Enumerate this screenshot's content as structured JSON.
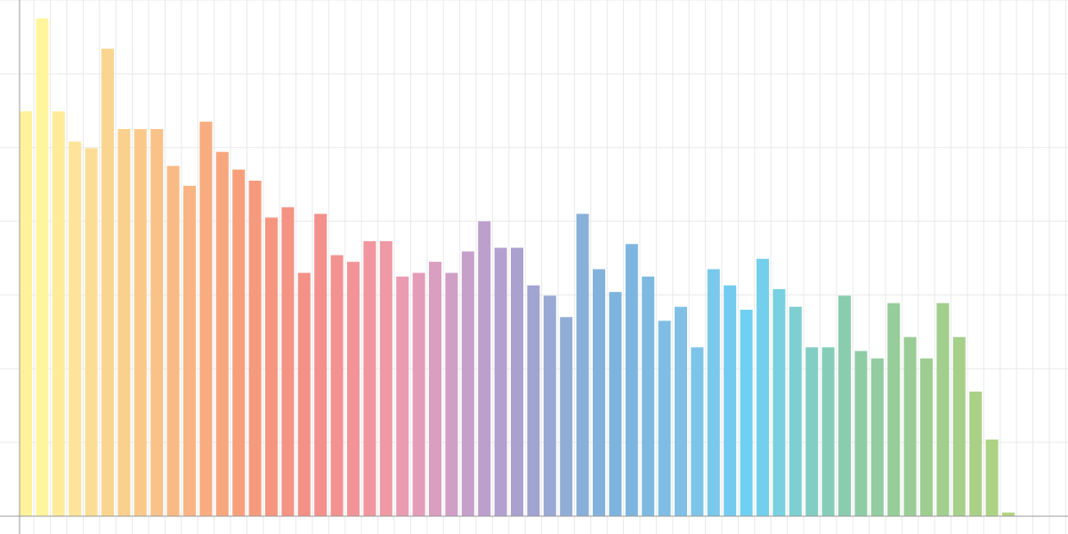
{
  "chart_data": {
    "type": "bar",
    "categories": [
      null,
      null,
      null,
      null,
      null,
      null,
      null,
      null,
      null,
      null,
      null,
      null,
      null,
      null,
      null,
      null,
      null,
      null,
      null,
      null,
      null,
      null,
      null,
      null,
      null,
      null,
      null,
      null,
      null,
      null,
      null,
      null,
      null,
      null,
      null,
      null,
      null,
      null,
      null,
      null,
      null,
      null,
      null,
      null,
      null,
      null,
      null,
      null,
      null,
      null,
      null,
      null,
      null,
      null,
      null,
      null,
      null,
      null,
      null,
      null,
      null
    ],
    "values": [
      54.9,
      67.5,
      54.9,
      50.8,
      49.9,
      63.4,
      52.5,
      52.5,
      52.5,
      47.5,
      44.8,
      53.5,
      49.4,
      47,
      45.5,
      40.5,
      41.9,
      33,
      41,
      35.4,
      34.5,
      37.3,
      37.3,
      32.5,
      33,
      34.5,
      33,
      35.9,
      40,
      36.4,
      36.4,
      31.3,
      29.9,
      27,
      41,
      33.5,
      30.4,
      36.9,
      32.5,
      26.5,
      28.4,
      22.9,
      33.5,
      31.3,
      28,
      34.9,
      30.8,
      28.4,
      22.9,
      22.9,
      29.9,
      22.4,
      21.4,
      28.9,
      24.3,
      21.4,
      28.9,
      24.3,
      16.9,
      10.4,
      0.5
    ],
    "colors": [
      "#fff29a",
      "#fff59d",
      "#ffeb99",
      "#fde49a",
      "#fbdd96",
      "#fad58f",
      "#fad08e",
      "#fac98a",
      "#f9c288",
      "#f9bb86",
      "#f9b483",
      "#f8ad80",
      "#f8a67d",
      "#f79f7b",
      "#f69a7d",
      "#f6967f",
      "#f59384",
      "#f49187",
      "#f3908c",
      "#f29291",
      "#f29497",
      "#f1969e",
      "#ef99a5",
      "#ea9cb0",
      "#e39db8",
      "#d99ec0",
      "#cf9fc6",
      "#c69fca",
      "#bc9fcc",
      "#b3a0ce",
      "#aaa1cf",
      "#a1a4d0",
      "#98a9d3",
      "#90add6",
      "#88b0d8",
      "#82b2db",
      "#7db4dd",
      "#7cb6e0",
      "#7eb9e2",
      "#80bde4",
      "#80c0e6",
      "#7ec4e8",
      "#7ac8ec",
      "#73ccf0",
      "#6fd0f4",
      "#72d0ec",
      "#78d0e0",
      "#7ecfd2",
      "#82cec4",
      "#86cdb8",
      "#8accae",
      "#8ecca6",
      "#92cca0",
      "#96cd9a",
      "#9acd96",
      "#9ecd92",
      "#a2ce8e",
      "#a6cf8a",
      "#aad087",
      "#aed284",
      "#b3d481"
    ],
    "ylim": [
      0,
      70
    ],
    "yticks": [
      0,
      10,
      20,
      30,
      40,
      50,
      60,
      70
    ],
    "grid": true
  }
}
